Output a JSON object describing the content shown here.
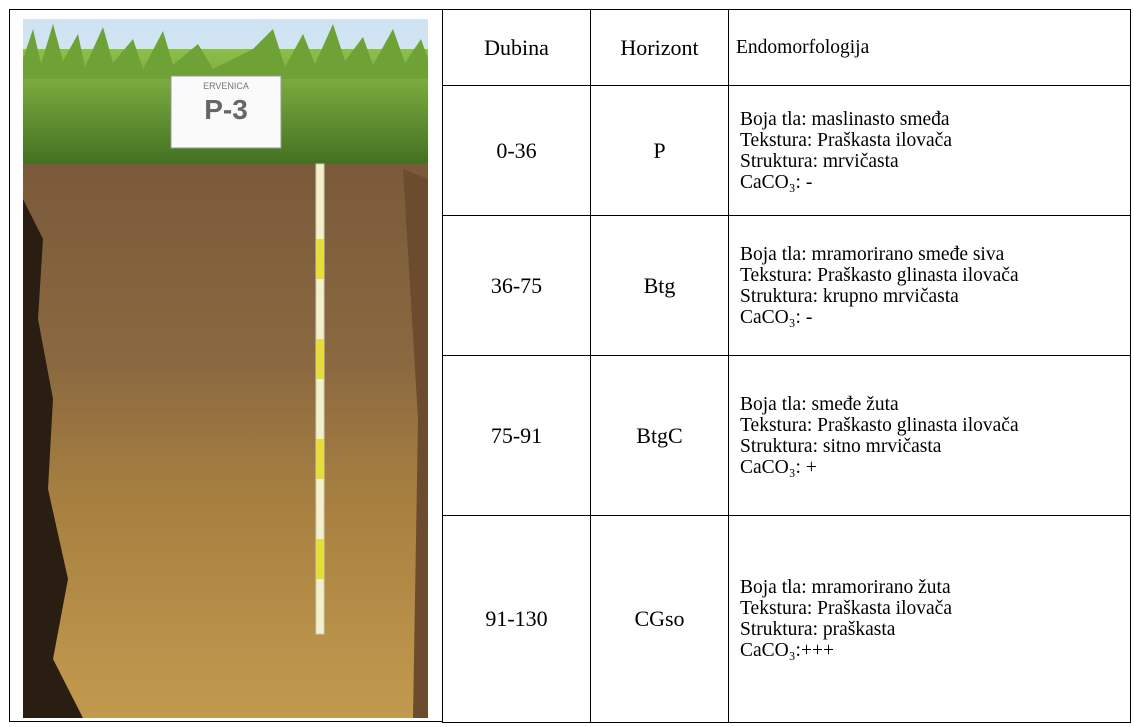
{
  "photo": {
    "sign": {
      "place": "ERVENICA",
      "profile": "P-3"
    }
  },
  "table": {
    "header": [
      "Dubina",
      "Horizont",
      "Endomorfologija"
    ],
    "rows": [
      {
        "depth": "0-36",
        "horizon": "P",
        "lines": [
          "Boja tla: maslinasto smeđa",
          "Tekstura: Praškasta ilovača",
          "Struktura: mrvičasta",
          "CaCO₃: -"
        ]
      },
      {
        "depth": "36-75",
        "horizon": "Btg",
        "lines": [
          "Boja tla: mramorirano smeđe siva",
          "Tekstura: Praškasto glinasta ilovača",
          "Struktura: krupno mrvičasta",
          "CaCO₃: -"
        ]
      },
      {
        "depth": "75-91",
        "horizon": "BtgC",
        "lines": [
          "Boja tla: smeđe žuta",
          "Tekstura: Praškasto glinasta ilovača",
          "Struktura: sitno mrvičasta",
          "CaCO₃: +"
        ]
      },
      {
        "depth": "91-130",
        "horizon": "CGso",
        "lines": [
          "Boja tla: mramorirano žuta",
          "Tekstura: Praškasta ilovača",
          "Struktura: praškasta",
          "CaCO₃:+++"
        ]
      }
    ]
  }
}
